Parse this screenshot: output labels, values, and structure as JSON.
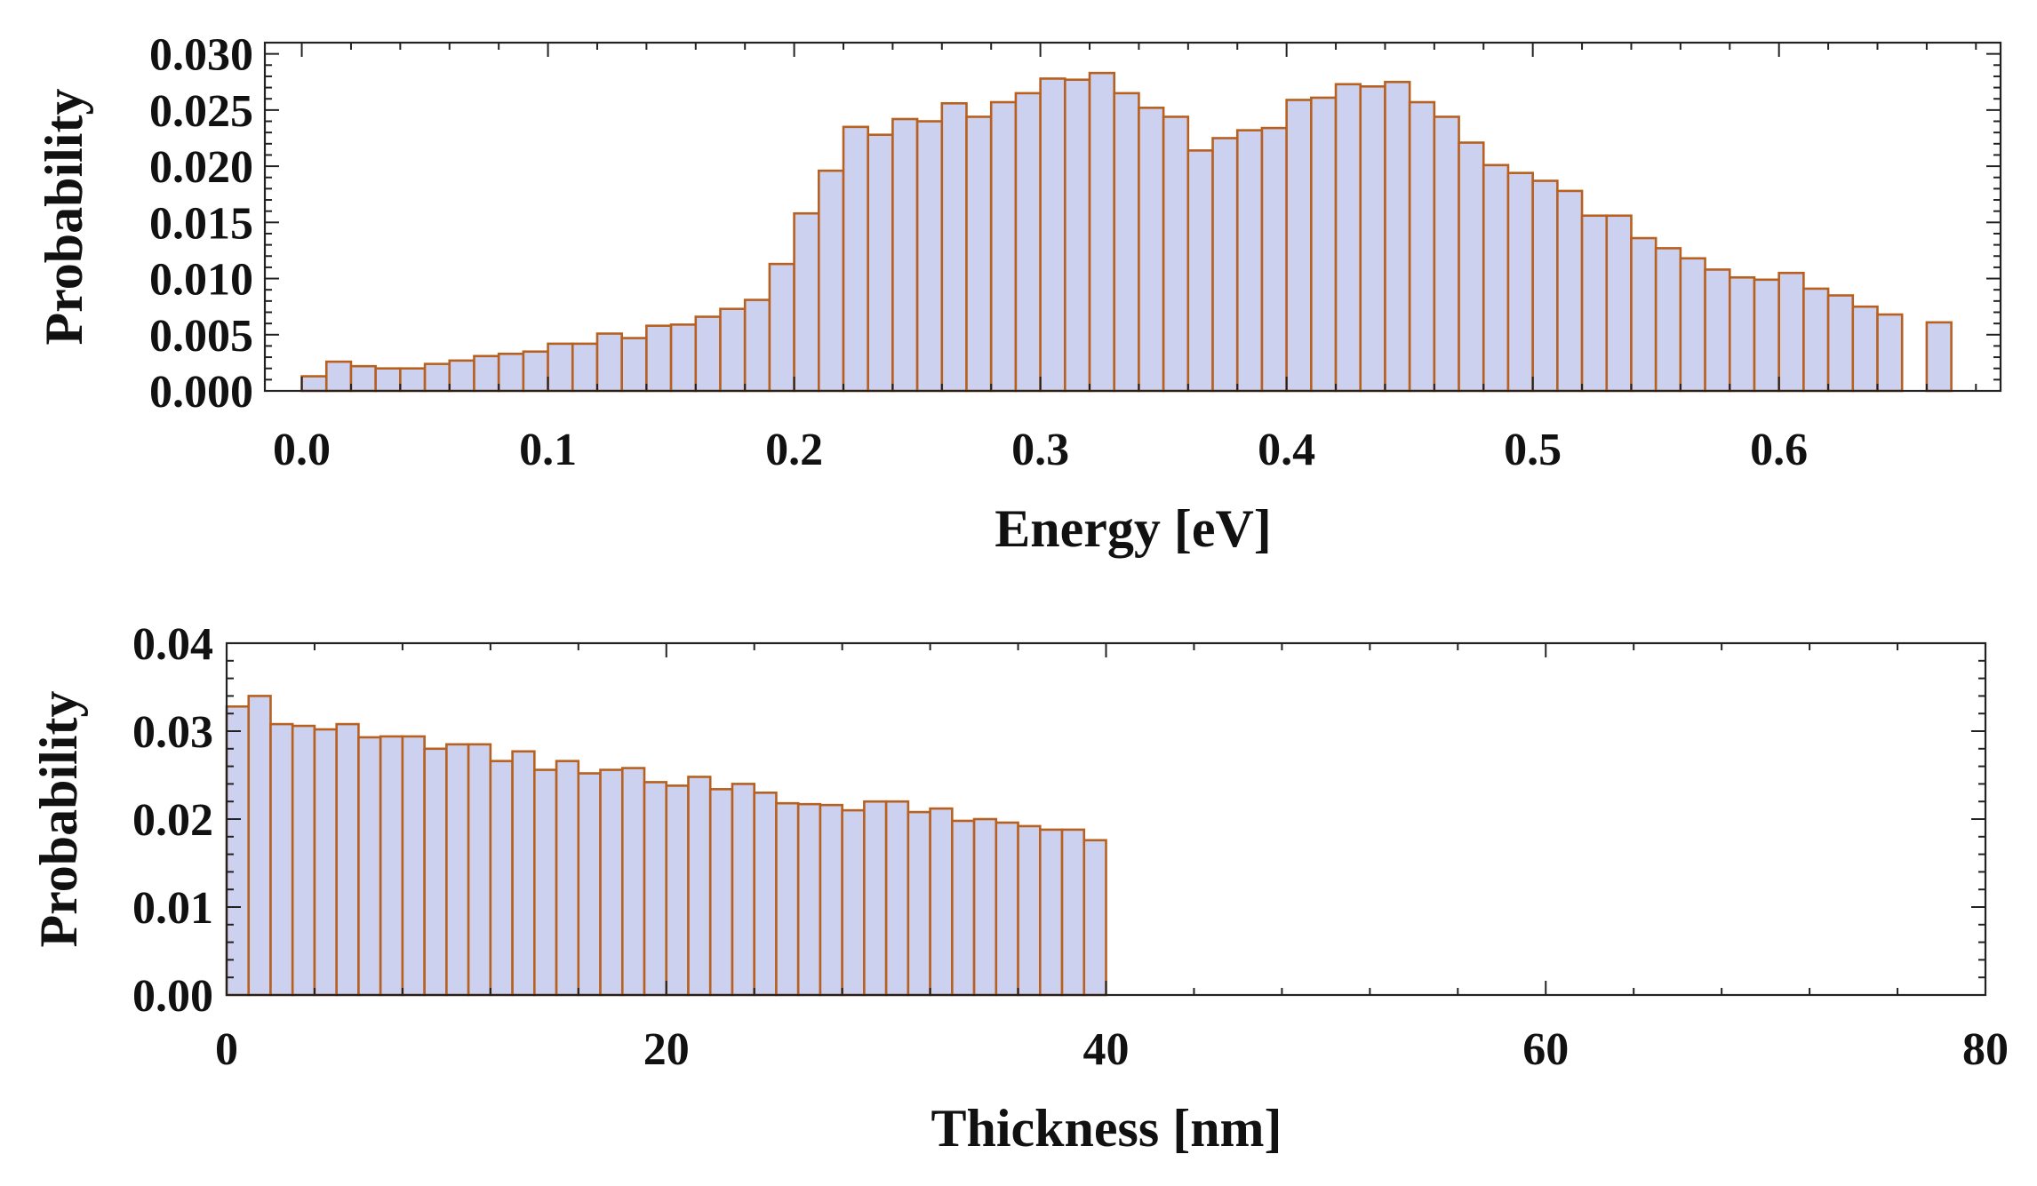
{
  "colors": {
    "bar_fill": "#ccd1f0",
    "bar_stroke": "#b8601f",
    "axis": "#222222"
  },
  "chart_data": [
    {
      "type": "bar",
      "title": "",
      "xlabel": "Energy [eV]",
      "ylabel": "Probability",
      "xlim": [
        -0.015,
        0.69
      ],
      "ylim": [
        0,
        0.031
      ],
      "bin_width": 0.01,
      "xticks": [
        "0.0",
        "0.1",
        "0.2",
        "0.3",
        "0.4",
        "0.5",
        "0.6"
      ],
      "xtick_values": [
        0.0,
        0.1,
        0.2,
        0.3,
        0.4,
        0.5,
        0.6
      ],
      "yticks": [
        "0.000",
        "0.005",
        "0.010",
        "0.015",
        "0.020",
        "0.025",
        "0.030"
      ],
      "ytick_values": [
        0.0,
        0.005,
        0.01,
        0.015,
        0.02,
        0.025,
        0.03
      ],
      "x": [
        0.0,
        0.01,
        0.02,
        0.03,
        0.04,
        0.05,
        0.06,
        0.07,
        0.08,
        0.09,
        0.1,
        0.11,
        0.12,
        0.13,
        0.14,
        0.15,
        0.16,
        0.17,
        0.18,
        0.19,
        0.2,
        0.21,
        0.22,
        0.23,
        0.24,
        0.25,
        0.26,
        0.27,
        0.28,
        0.29,
        0.3,
        0.31,
        0.32,
        0.33,
        0.34,
        0.35,
        0.36,
        0.37,
        0.38,
        0.39,
        0.4,
        0.41,
        0.42,
        0.43,
        0.44,
        0.45,
        0.46,
        0.47,
        0.48,
        0.49,
        0.5,
        0.51,
        0.52,
        0.53,
        0.54,
        0.55,
        0.56,
        0.57,
        0.58,
        0.59,
        0.6,
        0.61,
        0.62,
        0.63,
        0.64,
        0.65,
        0.66
      ],
      "values": [
        0.0013,
        0.0026,
        0.0022,
        0.002,
        0.002,
        0.0024,
        0.0027,
        0.0031,
        0.0033,
        0.0035,
        0.0042,
        0.0042,
        0.0051,
        0.0047,
        0.0058,
        0.0059,
        0.0066,
        0.0073,
        0.0081,
        0.0113,
        0.0158,
        0.0196,
        0.0235,
        0.0228,
        0.0242,
        0.024,
        0.0256,
        0.0244,
        0.0257,
        0.0265,
        0.0278,
        0.0277,
        0.0283,
        0.0265,
        0.0252,
        0.0244,
        0.0214,
        0.0225,
        0.0232,
        0.0234,
        0.0259,
        0.0261,
        0.0273,
        0.0271,
        0.0275,
        0.0257,
        0.0244,
        0.0221,
        0.0201,
        0.0194,
        0.0187,
        0.0178,
        0.0156,
        0.0156,
        0.0136,
        0.0127,
        0.0118,
        0.0108,
        0.0101,
        0.0099,
        0.0105,
        0.0091,
        0.0085,
        0.0075,
        0.0068,
        0.0,
        0.0061
      ]
    },
    {
      "type": "bar",
      "title": "",
      "xlabel": "Thickness [nm]",
      "ylabel": "Probability",
      "xlim": [
        0,
        80
      ],
      "ylim": [
        0,
        0.04
      ],
      "bin_width": 1,
      "xticks": [
        "0",
        "20",
        "40",
        "60",
        "80"
      ],
      "xtick_values": [
        0,
        20,
        40,
        60,
        80
      ],
      "yticks": [
        "0.00",
        "0.01",
        "0.02",
        "0.03",
        "0.04"
      ],
      "ytick_values": [
        0.0,
        0.01,
        0.02,
        0.03,
        0.04
      ],
      "x": [
        0,
        1,
        2,
        3,
        4,
        5,
        6,
        7,
        8,
        9,
        10,
        11,
        12,
        13,
        14,
        15,
        16,
        17,
        18,
        19,
        20,
        21,
        22,
        23,
        24,
        25,
        26,
        27,
        28,
        29,
        30,
        31,
        32,
        33,
        34,
        35,
        36,
        37,
        38,
        39
      ],
      "values": [
        0.0328,
        0.034,
        0.0308,
        0.0306,
        0.0302,
        0.0308,
        0.0293,
        0.0294,
        0.0294,
        0.028,
        0.0285,
        0.0285,
        0.0266,
        0.0277,
        0.0256,
        0.0266,
        0.0252,
        0.0256,
        0.0258,
        0.0242,
        0.0238,
        0.0248,
        0.0234,
        0.024,
        0.023,
        0.0218,
        0.0217,
        0.0216,
        0.021,
        0.022,
        0.022,
        0.0208,
        0.0212,
        0.0198,
        0.02,
        0.0196,
        0.0192,
        0.0188,
        0.0188,
        0.0176
      ]
    }
  ]
}
